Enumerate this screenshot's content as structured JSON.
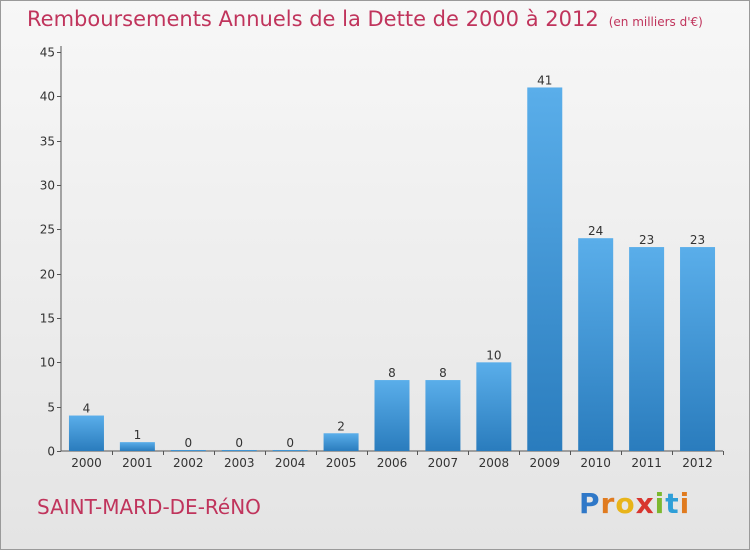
{
  "chart_data": {
    "type": "bar",
    "title": "Remboursements Annuels de la Dette de 2000 à 2012",
    "subtitle": "(en milliers d'€)",
    "categories": [
      "2000",
      "2001",
      "2002",
      "2003",
      "2004",
      "2005",
      "2006",
      "2007",
      "2008",
      "2009",
      "2010",
      "2011",
      "2012"
    ],
    "values": [
      4,
      1,
      0,
      0,
      0,
      2,
      8,
      8,
      10,
      41,
      24,
      23,
      23
    ],
    "value_labels": [
      "4",
      "1",
      "0",
      "0",
      "0",
      "2",
      "8",
      "8",
      "10",
      "41",
      "24",
      "23",
      "23"
    ],
    "xlabel": "",
    "ylabel": "",
    "ylim": [
      0,
      45
    ],
    "yticks": [
      0,
      5,
      10,
      15,
      20,
      25,
      30,
      35,
      40,
      45
    ],
    "ytick_labels": [
      "0",
      "5",
      "10",
      "15",
      "20",
      "25",
      "30",
      "35",
      "40",
      "45"
    ],
    "grid": false,
    "colors": {
      "bar_top": "#5aaeea",
      "bar_bottom": "#2a7cbd",
      "title": "#c0345c"
    }
  },
  "footer": {
    "commune": "SAINT-MARD-DE-RéNO",
    "logo_letters": [
      "P",
      "r",
      "o",
      "x",
      "i",
      "t",
      "i"
    ],
    "logo_colors": [
      "#2f78c8",
      "#e07b1f",
      "#e8b41a",
      "#d8352f",
      "#7cb82f",
      "#2f9fd8",
      "#e07b1f"
    ]
  }
}
